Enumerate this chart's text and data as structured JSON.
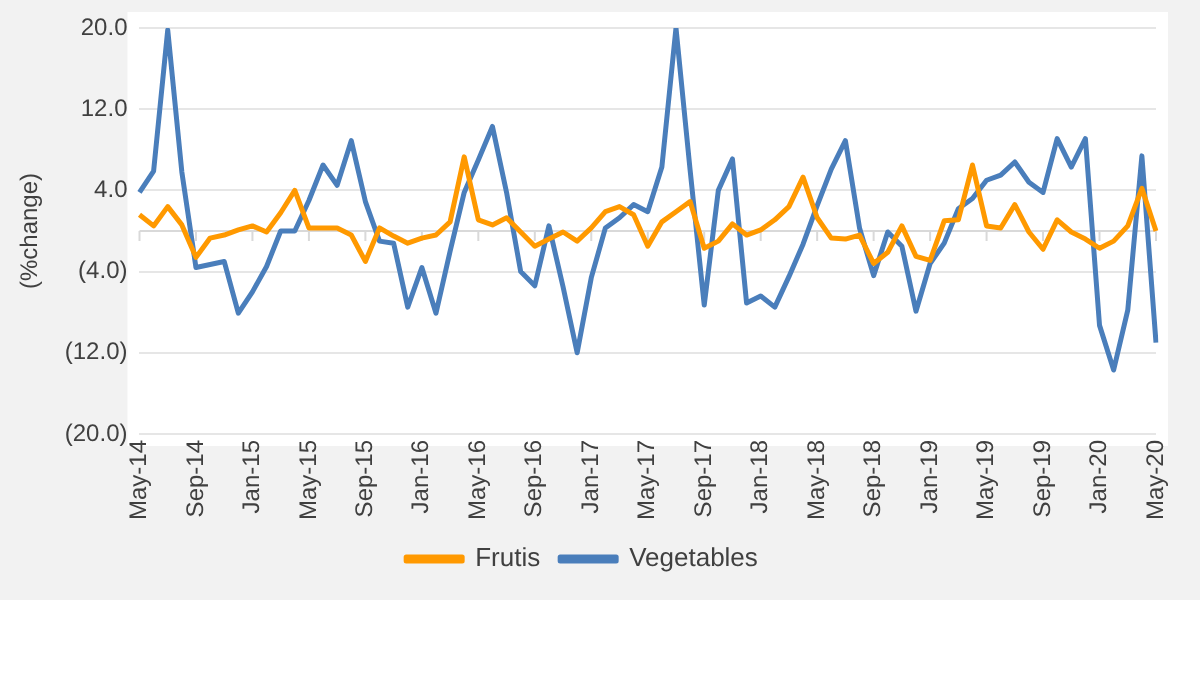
{
  "chart_data": {
    "type": "line",
    "ylabel": "(%change)",
    "categories": [
      "May-14",
      null,
      null,
      null,
      "Sep-14",
      null,
      null,
      null,
      "Jan-15",
      null,
      null,
      null,
      "May-15",
      null,
      null,
      null,
      "Sep-15",
      null,
      null,
      null,
      "Jan-16",
      null,
      null,
      null,
      "May-16",
      null,
      null,
      null,
      "Sep-16",
      null,
      null,
      null,
      "Jan-17",
      null,
      null,
      null,
      "May-17",
      null,
      null,
      null,
      "Sep-17",
      null,
      null,
      null,
      "Jan-18",
      null,
      null,
      null,
      "May-18",
      null,
      null,
      null,
      "Sep-18",
      null,
      null,
      null,
      "Jan-19",
      null,
      null,
      null,
      "May-19",
      null,
      null,
      null,
      "Sep-19",
      null,
      null,
      null,
      "Jan-20",
      null,
      null,
      null,
      "May-20"
    ],
    "series": [
      {
        "name": "Frutis",
        "color": "#ff9900",
        "values": [
          1.6,
          0.5,
          2.4,
          0.6,
          -2.6,
          -0.7,
          -0.4,
          0.1,
          0.5,
          -0.1,
          1.8,
          4,
          0.3,
          0.3,
          0.3,
          -0.4,
          -3,
          0.3,
          -0.5,
          -1.2,
          -0.7,
          -0.4,
          0.9,
          7.3,
          1.1,
          0.6,
          1.3,
          -0.1,
          -1.5,
          -0.8,
          -0.1,
          -1,
          0.3,
          1.9,
          2.4,
          1.6,
          -1.5,
          0.9,
          1.9,
          2.9,
          -1.7,
          -1,
          0.7,
          -0.4,
          0.1,
          1.1,
          2.4,
          5.3,
          1.3,
          -0.7,
          -0.8,
          -0.4,
          -3.2,
          -2.1,
          0.5,
          -2.5,
          -2.9,
          1,
          1.1,
          6.5,
          0.5,
          0.3,
          2.6,
          -0.1,
          -1.8,
          1.1,
          -0.1,
          -0.8,
          -1.7,
          -1,
          0.5,
          4.2,
          0
        ]
      },
      {
        "name": "Vegetables",
        "color": "#4a7ebb",
        "values": [
          3.8,
          5.9,
          19.8,
          5.8,
          -3.6,
          -3.3,
          -3,
          -8.1,
          -6,
          -3.5,
          0,
          0,
          3,
          6.5,
          4.5,
          8.9,
          2.9,
          -1,
          -1.2,
          -7.5,
          -3.6,
          -8.1,
          -2,
          3.8,
          7,
          10.3,
          3.8,
          -4,
          -5.4,
          0.5,
          -5.5,
          -12,
          -4.6,
          0.3,
          1.3,
          2.6,
          1.9,
          6.3,
          20,
          6,
          -7.3,
          4,
          7.1,
          -7.1,
          -6.4,
          -7.5,
          -4.5,
          -1.3,
          2.5,
          6.1,
          8.9,
          0.3,
          -4.4,
          -0.1,
          -1.5,
          -7.9,
          -3.2,
          -1.2,
          2.2,
          3.2,
          5,
          5.5,
          6.8,
          4.8,
          3.8,
          9.1,
          6.3,
          9.1,
          -9.3,
          -13.7,
          -7.8,
          7.4,
          -11
        ]
      }
    ],
    "ylim": [
      -20,
      20
    ],
    "yticks": [
      {
        "value": -20,
        "label": "(20.0)"
      },
      {
        "value": -12,
        "label": "(12.0)"
      },
      {
        "value": -4,
        "label": "(4.0)"
      },
      {
        "value": 4,
        "label": "4.0"
      },
      {
        "value": 12,
        "label": "12.0"
      },
      {
        "value": 20,
        "label": "20.0"
      }
    ],
    "grid": "y",
    "legend": "bottom",
    "marker": "none",
    "line_style": "solid"
  }
}
